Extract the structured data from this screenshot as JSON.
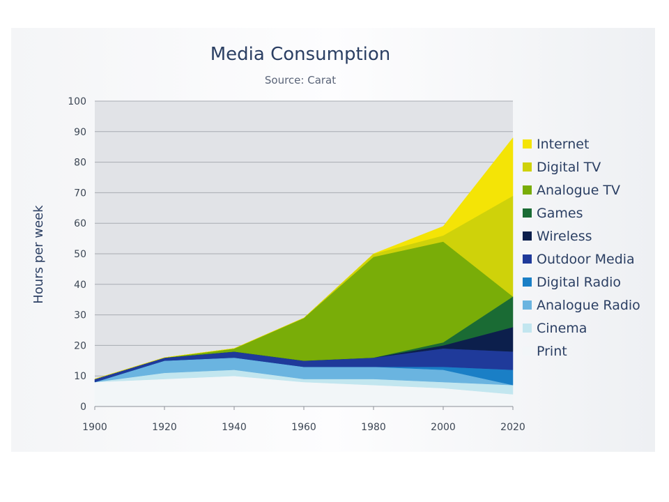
{
  "chart_data": {
    "type": "area",
    "title": "Media Consumption",
    "subtitle": "Source: Carat",
    "xlabel": "",
    "ylabel": "Hours per week",
    "x": [
      1900,
      1920,
      1940,
      1960,
      1980,
      2000,
      2020
    ],
    "xlim": [
      1900,
      2020
    ],
    "ylim": [
      0,
      100
    ],
    "yticks": [
      0,
      10,
      20,
      30,
      40,
      50,
      60,
      70,
      80,
      90,
      100
    ],
    "grid": true,
    "stacked": true,
    "legend_position": "right",
    "series": [
      {
        "name": "Print",
        "color": "#f2f6f8",
        "values": [
          8,
          9,
          10,
          8,
          7,
          6,
          4
        ]
      },
      {
        "name": "Cinema",
        "color": "#c2e6ef",
        "values": [
          0,
          2,
          2,
          1,
          2,
          2,
          3
        ]
      },
      {
        "name": "Analogue Radio",
        "color": "#6ab4e0",
        "values": [
          0,
          4,
          4,
          4,
          4,
          4,
          0
        ]
      },
      {
        "name": "Digital Radio",
        "color": "#1a7fc6",
        "values": [
          0,
          0,
          0,
          0,
          0,
          1,
          5
        ]
      },
      {
        "name": "Outdoor Media",
        "color": "#1f3a9a",
        "values": [
          1,
          1,
          2,
          2,
          3,
          6,
          6
        ]
      },
      {
        "name": "Wireless",
        "color": "#0c1f4c",
        "values": [
          0,
          0,
          0,
          0,
          0,
          1,
          8
        ]
      },
      {
        "name": "Games",
        "color": "#1a6b34",
        "values": [
          0,
          0,
          0,
          0,
          0,
          1,
          10
        ]
      },
      {
        "name": "Analogue TV",
        "color": "#79ad08",
        "values": [
          0,
          0,
          1,
          14,
          33,
          33,
          0
        ]
      },
      {
        "name": "Digital TV",
        "color": "#cfd20a",
        "values": [
          0,
          0,
          0,
          0,
          1,
          2,
          33
        ]
      },
      {
        "name": "Internet",
        "color": "#f4e406",
        "values": [
          0,
          0,
          0,
          0,
          0,
          3,
          19
        ]
      }
    ]
  }
}
